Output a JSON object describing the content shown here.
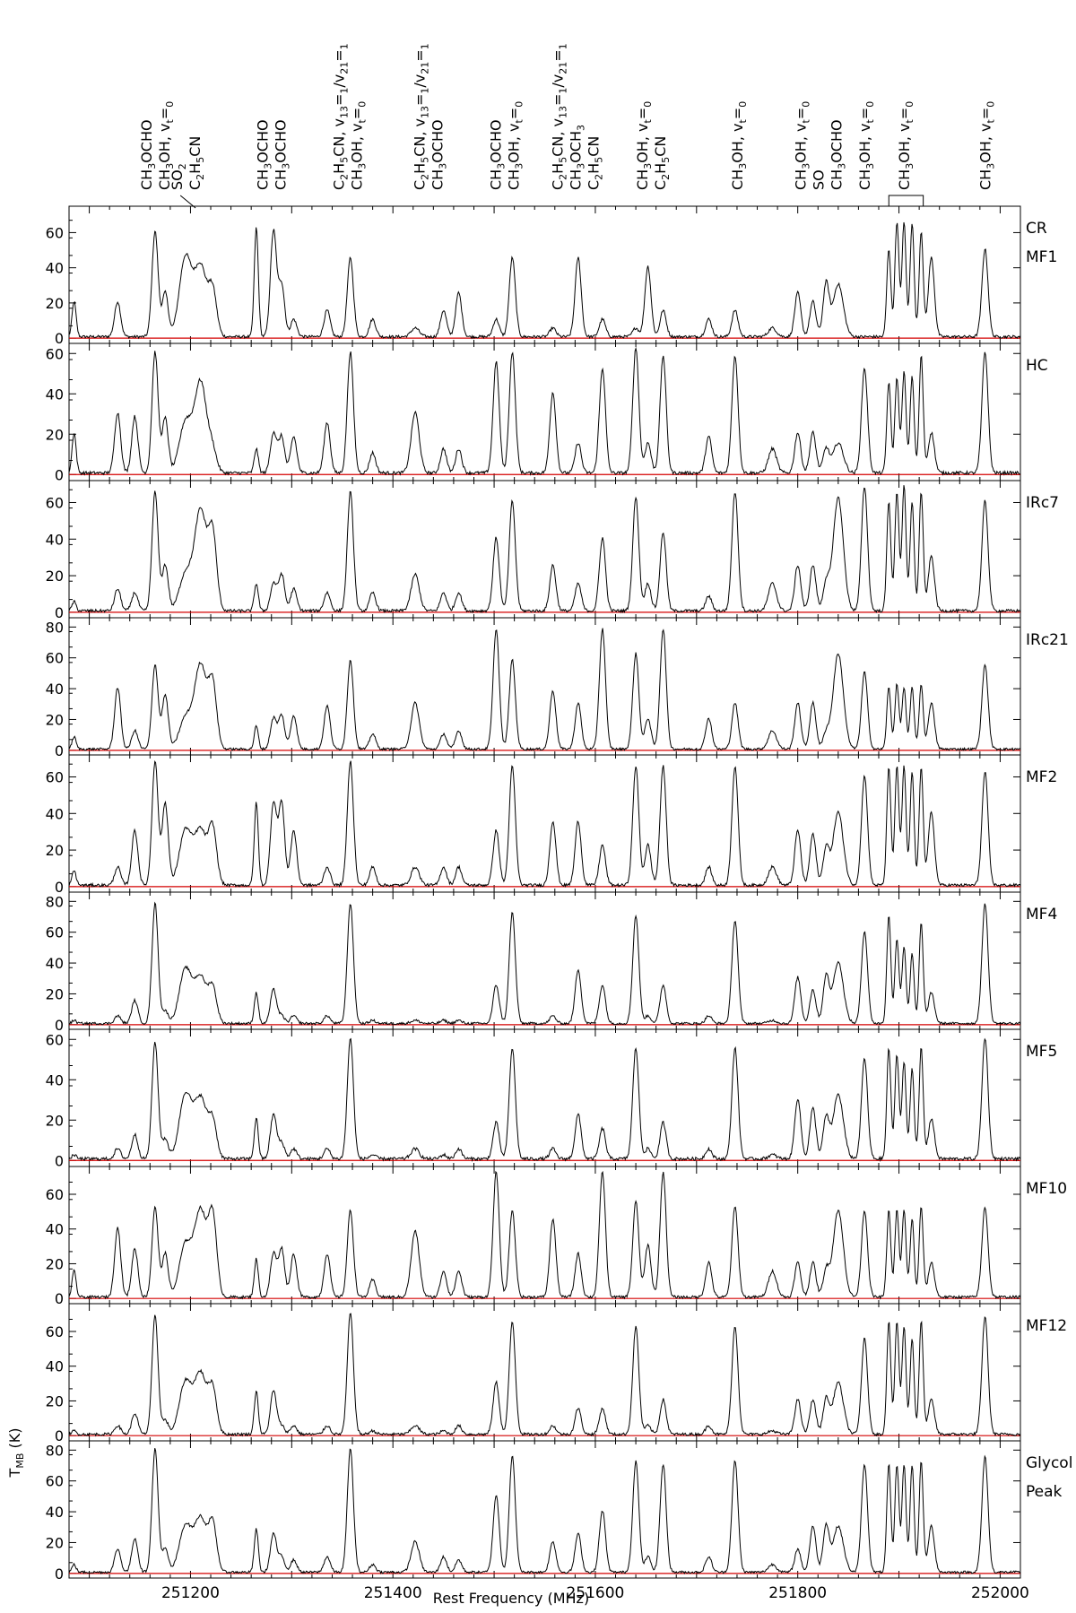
{
  "chart_data": {
    "type": "line",
    "xlabel": "Rest Frequency (MHz)",
    "ylabel": "T_MB (K)",
    "xlim": [
      251080,
      252020
    ],
    "x_ticks": [
      251200,
      251400,
      251600,
      251800,
      252000
    ],
    "x_tick_labels": [
      "251200",
      "251400",
      "251600",
      "251800",
      "252000"
    ],
    "baseline_color": "#d40000",
    "line_color": "#000000",
    "line_identifications": [
      {
        "freq": 251165,
        "labels": [
          "CH3OCHO",
          "CH3OH, vt=0"
        ]
      },
      {
        "freq": 251195,
        "labels": [
          "SO2",
          "C2H5CN"
        ]
      },
      {
        "freq": 251280,
        "labels": [
          "CH3OCHO",
          "CH3OCHO"
        ]
      },
      {
        "freq": 251355,
        "labels": [
          "C2H5CN, v13=1/v21=1",
          "CH3OH, vt=0"
        ]
      },
      {
        "freq": 251435,
        "labels": [
          "C2H5CN, v13=1/v21=1",
          "CH3OCHO"
        ]
      },
      {
        "freq": 251510,
        "labels": [
          "CH3OCHO",
          "CH3OH, vt=0"
        ]
      },
      {
        "freq": 251580,
        "labels": [
          "C2H5CN, v13=1/v21=1",
          "CH3OCH3",
          "C2H5CN"
        ]
      },
      {
        "freq": 251655,
        "labels": [
          "CH3OH, vt=0",
          "C2H5CN"
        ]
      },
      {
        "freq": 251740,
        "labels": [
          "CH3OH, vt=0"
        ]
      },
      {
        "freq": 251820,
        "labels": [
          "CH3OH, vt=0",
          "SO",
          "CH3OCHO"
        ]
      },
      {
        "freq": 251866,
        "labels": [
          "CH3OH, vt=0"
        ]
      },
      {
        "freq": 251905,
        "labels": [
          "CH3OH, vt=0"
        ]
      },
      {
        "freq": 251985,
        "labels": [
          "CH3OH, vt=0"
        ]
      }
    ],
    "panels": [
      {
        "name": "CR MF1",
        "label_lines": [
          "CR",
          "MF1"
        ],
        "ylim": [
          -3,
          75
        ],
        "yticks": [
          0,
          20,
          40,
          60
        ]
      },
      {
        "name": "HC",
        "label_lines": [
          "HC"
        ],
        "ylim": [
          -3,
          65
        ],
        "yticks": [
          0,
          20,
          40,
          60
        ]
      },
      {
        "name": "IRc7",
        "label_lines": [
          "IRc7"
        ],
        "ylim": [
          -3,
          72
        ],
        "yticks": [
          0,
          20,
          40,
          60
        ]
      },
      {
        "name": "IRc21",
        "label_lines": [
          "IRc21"
        ],
        "ylim": [
          -3,
          86
        ],
        "yticks": [
          0,
          20,
          40,
          60,
          80
        ]
      },
      {
        "name": "MF2",
        "label_lines": [
          "MF2"
        ],
        "ylim": [
          -3,
          72
        ],
        "yticks": [
          0,
          20,
          40,
          60
        ]
      },
      {
        "name": "MF4",
        "label_lines": [
          "MF4"
        ],
        "ylim": [
          -3,
          86
        ],
        "yticks": [
          0,
          20,
          40,
          60,
          80
        ]
      },
      {
        "name": "MF5",
        "label_lines": [
          "MF5"
        ],
        "ylim": [
          -3,
          65
        ],
        "yticks": [
          0,
          20,
          40,
          60
        ]
      },
      {
        "name": "MF10",
        "label_lines": [
          "MF10"
        ],
        "ylim": [
          -3,
          76
        ],
        "yticks": [
          0,
          20,
          40,
          60
        ]
      },
      {
        "name": "MF12",
        "label_lines": [
          "MF12"
        ],
        "ylim": [
          -3,
          76
        ],
        "yticks": [
          0,
          20,
          40,
          60
        ]
      },
      {
        "name": "Glycol Peak",
        "label_lines": [
          "Glycol",
          "Peak"
        ],
        "ylim": [
          -3,
          86
        ],
        "yticks": [
          0,
          20,
          40,
          60,
          80
        ]
      }
    ],
    "line_profiles": [
      {
        "freq": 251085,
        "width": 2
      },
      {
        "freq": 251128,
        "width": 3
      },
      {
        "freq": 251145,
        "width": 3
      },
      {
        "freq": 251165,
        "width": 3
      },
      {
        "freq": 251175,
        "width": 3
      },
      {
        "freq": 251195,
        "width": 6
      },
      {
        "freq": 251210,
        "width": 6
      },
      {
        "freq": 251222,
        "width": 4
      },
      {
        "freq": 251265,
        "width": 2
      },
      {
        "freq": 251282,
        "width": 3
      },
      {
        "freq": 251290,
        "width": 3
      },
      {
        "freq": 251302,
        "width": 3
      },
      {
        "freq": 251335,
        "width": 3
      },
      {
        "freq": 251358,
        "width": 3
      },
      {
        "freq": 251380,
        "width": 3
      },
      {
        "freq": 251422,
        "width": 4
      },
      {
        "freq": 251450,
        "width": 3
      },
      {
        "freq": 251465,
        "width": 3
      },
      {
        "freq": 251502,
        "width": 3
      },
      {
        "freq": 251518,
        "width": 3
      },
      {
        "freq": 251558,
        "width": 3
      },
      {
        "freq": 251583,
        "width": 3
      },
      {
        "freq": 251607,
        "width": 3
      },
      {
        "freq": 251640,
        "width": 3
      },
      {
        "freq": 251652,
        "width": 3
      },
      {
        "freq": 251667,
        "width": 3
      },
      {
        "freq": 251712,
        "width": 3
      },
      {
        "freq": 251738,
        "width": 3
      },
      {
        "freq": 251775,
        "width": 4
      },
      {
        "freq": 251800,
        "width": 3
      },
      {
        "freq": 251815,
        "width": 3
      },
      {
        "freq": 251828,
        "width": 3
      },
      {
        "freq": 251840,
        "width": 5
      },
      {
        "freq": 251866,
        "width": 3
      },
      {
        "freq": 251890,
        "width": 2
      },
      {
        "freq": 251898,
        "width": 2
      },
      {
        "freq": 251905,
        "width": 2
      },
      {
        "freq": 251913,
        "width": 2
      },
      {
        "freq": 251922,
        "width": 2
      },
      {
        "freq": 251932,
        "width": 3
      },
      {
        "freq": 251985,
        "width": 3
      },
      {
        "freq": 252010,
        "width": 2
      }
    ],
    "line_intensities": [
      [
        20,
        20,
        0,
        60,
        25,
        45,
        40,
        25,
        62,
        60,
        30,
        10,
        15,
        45,
        10,
        5,
        15,
        25,
        10,
        45,
        5,
        45,
        10,
        5,
        40,
        15,
        10,
        15,
        5,
        25,
        20,
        30,
        30,
        0,
        50,
        65,
        65,
        65,
        60,
        45,
        50,
        0
      ],
      [
        20,
        30,
        28,
        60,
        27,
        25,
        45,
        10,
        12,
        20,
        18,
        18,
        25,
        60,
        10,
        30,
        12,
        12,
        55,
        60,
        40,
        15,
        52,
        62,
        15,
        58,
        18,
        58,
        12,
        20,
        20,
        12,
        15,
        52,
        45,
        47,
        50,
        48,
        58,
        20,
        60,
        0
      ],
      [
        5,
        12,
        10,
        65,
        25,
        20,
        55,
        40,
        15,
        15,
        20,
        12,
        10,
        65,
        10,
        20,
        10,
        10,
        40,
        60,
        25,
        15,
        40,
        62,
        15,
        43,
        8,
        65,
        15,
        25,
        25,
        15,
        62,
        68,
        60,
        65,
        68,
        60,
        65,
        30,
        60,
        0
      ],
      [
        8,
        40,
        12,
        55,
        35,
        20,
        55,
        40,
        15,
        20,
        22,
        22,
        28,
        58,
        10,
        30,
        10,
        12,
        78,
        58,
        38,
        30,
        78,
        62,
        20,
        78,
        20,
        30,
        12,
        30,
        30,
        10,
        62,
        50,
        40,
        42,
        40,
        40,
        42,
        30,
        55,
        0
      ],
      [
        8,
        10,
        30,
        68,
        45,
        30,
        30,
        30,
        45,
        45,
        45,
        30,
        10,
        68,
        10,
        10,
        10,
        10,
        30,
        65,
        35,
        35,
        22,
        65,
        22,
        65,
        10,
        65,
        10,
        30,
        28,
        20,
        40,
        60,
        65,
        65,
        65,
        62,
        65,
        40,
        62,
        0
      ],
      [
        2,
        5,
        15,
        78,
        8,
        35,
        30,
        22,
        20,
        22,
        5,
        5,
        5,
        78,
        2,
        2,
        2,
        2,
        25,
        72,
        5,
        35,
        25,
        70,
        5,
        25,
        5,
        67,
        2,
        30,
        22,
        30,
        40,
        60,
        70,
        55,
        50,
        45,
        65,
        20,
        78,
        0
      ],
      [
        2,
        5,
        12,
        58,
        10,
        32,
        30,
        18,
        20,
        22,
        8,
        5,
        5,
        60,
        2,
        5,
        2,
        5,
        18,
        55,
        5,
        22,
        15,
        55,
        5,
        18,
        5,
        55,
        2,
        30,
        25,
        20,
        32,
        50,
        55,
        52,
        48,
        45,
        55,
        20,
        60,
        0
      ],
      [
        15,
        40,
        28,
        52,
        25,
        30,
        50,
        45,
        22,
        25,
        28,
        25,
        25,
        50,
        10,
        38,
        15,
        15,
        72,
        50,
        45,
        25,
        72,
        55,
        30,
        72,
        20,
        52,
        15,
        20,
        20,
        15,
        50,
        50,
        50,
        50,
        50,
        45,
        52,
        20,
        52,
        0
      ],
      [
        2,
        5,
        12,
        68,
        8,
        30,
        35,
        25,
        25,
        25,
        5,
        5,
        5,
        70,
        2,
        5,
        2,
        5,
        30,
        65,
        5,
        15,
        15,
        62,
        5,
        20,
        5,
        62,
        2,
        20,
        20,
        20,
        30,
        55,
        65,
        65,
        62,
        55,
        65,
        20,
        68,
        0
      ],
      [
        5,
        15,
        22,
        80,
        15,
        30,
        35,
        30,
        28,
        25,
        10,
        8,
        10,
        80,
        5,
        20,
        10,
        8,
        50,
        75,
        20,
        25,
        40,
        72,
        10,
        70,
        10,
        72,
        5,
        15,
        30,
        30,
        30,
        70,
        70,
        70,
        70,
        70,
        72,
        30,
        75,
        0
      ]
    ]
  }
}
